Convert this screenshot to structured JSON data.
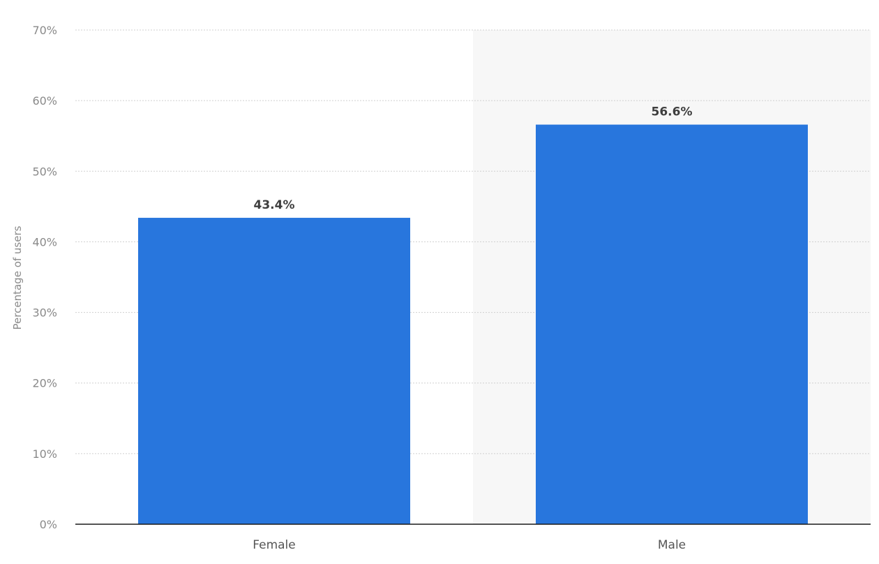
{
  "chart_data": {
    "type": "bar",
    "categories": [
      "Female",
      "Male"
    ],
    "values": [
      43.4,
      56.6
    ],
    "value_labels": [
      "43.4%",
      "56.6%"
    ],
    "ylabel": "Percentage of users",
    "xlabel": "",
    "ylim": [
      0,
      70
    ],
    "yticks": [
      0,
      10,
      20,
      30,
      40,
      50,
      60,
      70
    ],
    "ytick_labels": [
      "0%",
      "10%",
      "20%",
      "30%",
      "40%",
      "50%",
      "60%",
      "70%"
    ],
    "grid": true,
    "legend": "none",
    "highlight_category": "Male"
  },
  "colors": {
    "bar": "#2876dd",
    "grid": "#cfcfcf",
    "axis": "#1a1a1a",
    "highlight_band": "#f7f7f7"
  }
}
